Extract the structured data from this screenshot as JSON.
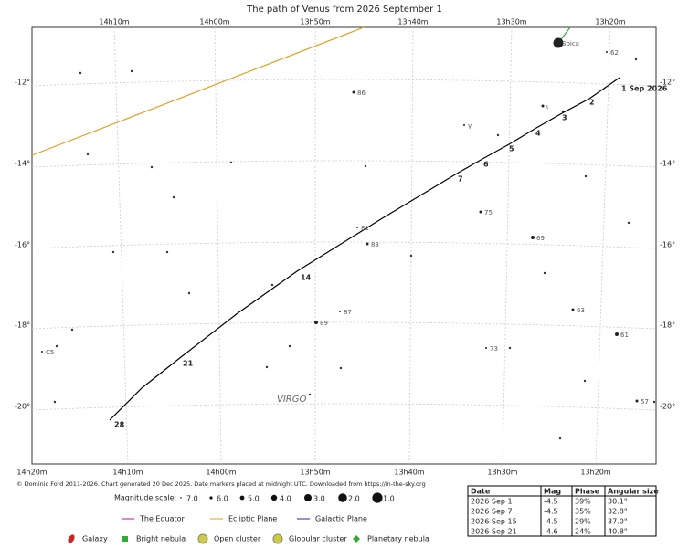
{
  "title": "The path of Venus from 2026 September 1",
  "ra_top": [
    "14h10m",
    "14h00m",
    "13h50m",
    "13h40m",
    "13h30m",
    "13h20m"
  ],
  "ra_bottom": [
    "14h20m",
    "14h10m",
    "14h00m",
    "13h50m",
    "13h40m",
    "13h30m",
    "13h20m"
  ],
  "dec_labels": [
    "-12°",
    "-14°",
    "-16°",
    "-18°",
    "-20°"
  ],
  "path_labels": [
    "1 Sep 2026",
    "2",
    "3",
    "4",
    "5",
    "6",
    "7",
    "14",
    "21",
    "28"
  ],
  "star_labels": [
    "Spica",
    "62",
    "86",
    "ι",
    "γ",
    "75",
    "81",
    "83",
    "69",
    "87",
    "89",
    "63",
    "61",
    "73",
    "C5",
    "57"
  ],
  "constellation": "VIRGO",
  "credit": "© Dominic Ford 2011-2026. Chart generated 20 Dec 2025. Date markers placed at midnight UTC. Downloaded from https://in-the-sky.org",
  "magnitude_scale": {
    "label": "Magnitude scale:",
    "values": [
      "7.0",
      "6.0",
      "5.0",
      "4.0",
      "3.0",
      "2.0",
      "1.0"
    ]
  },
  "lines_legend": [
    "The Equator",
    "Ecliptic Plane",
    "Galactic Plane"
  ],
  "objects_legend": [
    "Galaxy",
    "Bright nebula",
    "Open cluster",
    "Globular cluster",
    "Planetary nebula"
  ],
  "table": {
    "header": [
      "Date",
      "Mag",
      "Phase",
      "Angular size"
    ],
    "rows": [
      [
        "2026 Sep 1",
        "-4.5",
        "39%",
        "30.1\""
      ],
      [
        "2026 Sep 7",
        "-4.5",
        "35%",
        "32.8\""
      ],
      [
        "2026 Sep 15",
        "-4.5",
        "29%",
        "37.0\""
      ],
      [
        "2026 Sep 21",
        "-4.6",
        "24%",
        "40.8\""
      ]
    ]
  }
}
